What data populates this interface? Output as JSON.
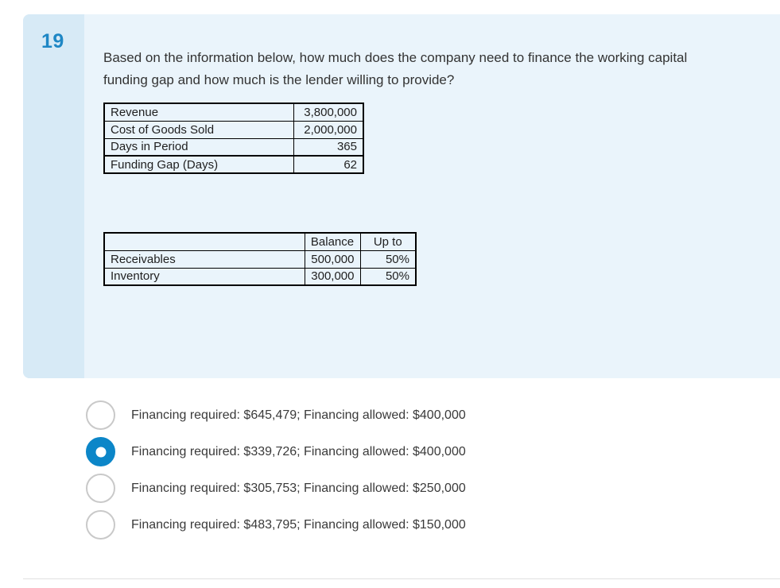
{
  "question": {
    "number": "19",
    "text_lines": [
      "Based on the information below, how much does the company need to finance the working capital",
      "funding gap and how much is the lender willing to provide?"
    ]
  },
  "table1": {
    "rows": [
      {
        "label": "Revenue",
        "value": "3,800,000"
      },
      {
        "label": "Cost of Goods Sold",
        "value": "2,000,000"
      },
      {
        "label": "Days in Period",
        "value": "365"
      },
      {
        "label": "Funding Gap (Days)",
        "value": "62"
      }
    ]
  },
  "table2": {
    "headers": [
      "",
      "Balance",
      "Up to"
    ],
    "rows": [
      {
        "label": "Receivables",
        "balance": "500,000",
        "up_to": "50%"
      },
      {
        "label": "Inventory",
        "balance": "300,000",
        "up_to": "50%"
      }
    ]
  },
  "options": [
    {
      "label": "Financing required: $645,479; Financing allowed: $400,000",
      "selected": false
    },
    {
      "label": "Financing required: $339,726; Financing allowed: $400,000",
      "selected": true
    },
    {
      "label": "Financing required: $305,753; Financing allowed: $250,000",
      "selected": false
    },
    {
      "label": "Financing required: $483,795; Financing allowed: $150,000",
      "selected": false
    }
  ],
  "colors": {
    "accent": "#1e87c5",
    "radio_selected": "#0c86c8",
    "radio_border": "#c9c9c9",
    "panel_bg": "#eaf4fb",
    "strip_bg": "#d7eaf6",
    "table_border": "#000000",
    "divider": "#e0e0e0"
  }
}
